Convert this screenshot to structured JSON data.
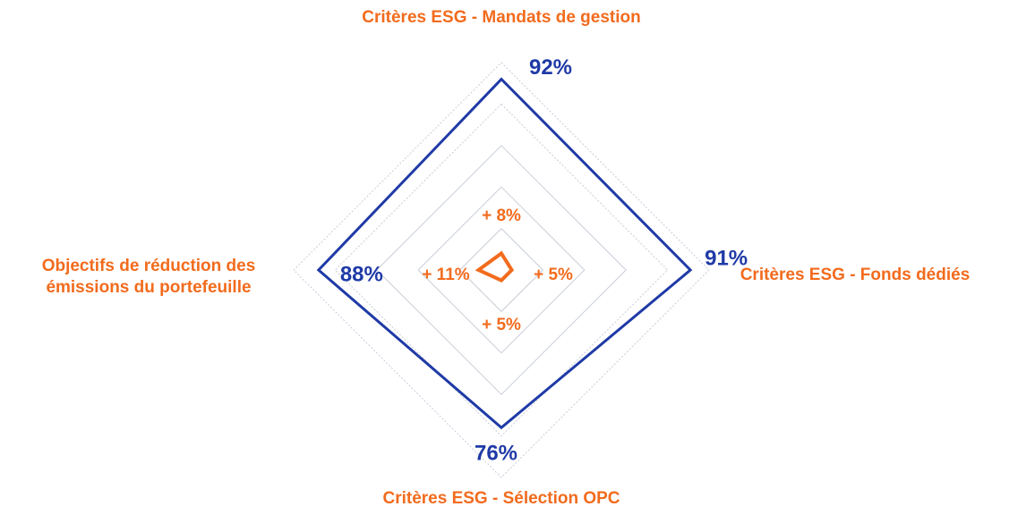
{
  "chart_data": {
    "type": "radar",
    "categories": [
      "Critères ESG - Mandats de gestion",
      "Critères ESG - Fonds dédiés",
      "Critères ESG - Sélection OPC",
      "Objectifs de réduction des émissions du portefeuille"
    ],
    "series": [
      {
        "color": "#1f3aa6",
        "values": [
          92,
          91,
          76,
          88
        ],
        "value_labels": [
          "92%",
          "91%",
          "76%",
          "88%"
        ]
      },
      {
        "color": "#f26b1d",
        "values": [
          8,
          5,
          5,
          11
        ],
        "value_labels": [
          "+ 8%",
          "+ 5%",
          "+ 5%",
          "+ 11%"
        ]
      }
    ],
    "rlim": [
      0,
      100
    ],
    "rticks": [
      20,
      40,
      60,
      80,
      100
    ],
    "grid": true
  }
}
